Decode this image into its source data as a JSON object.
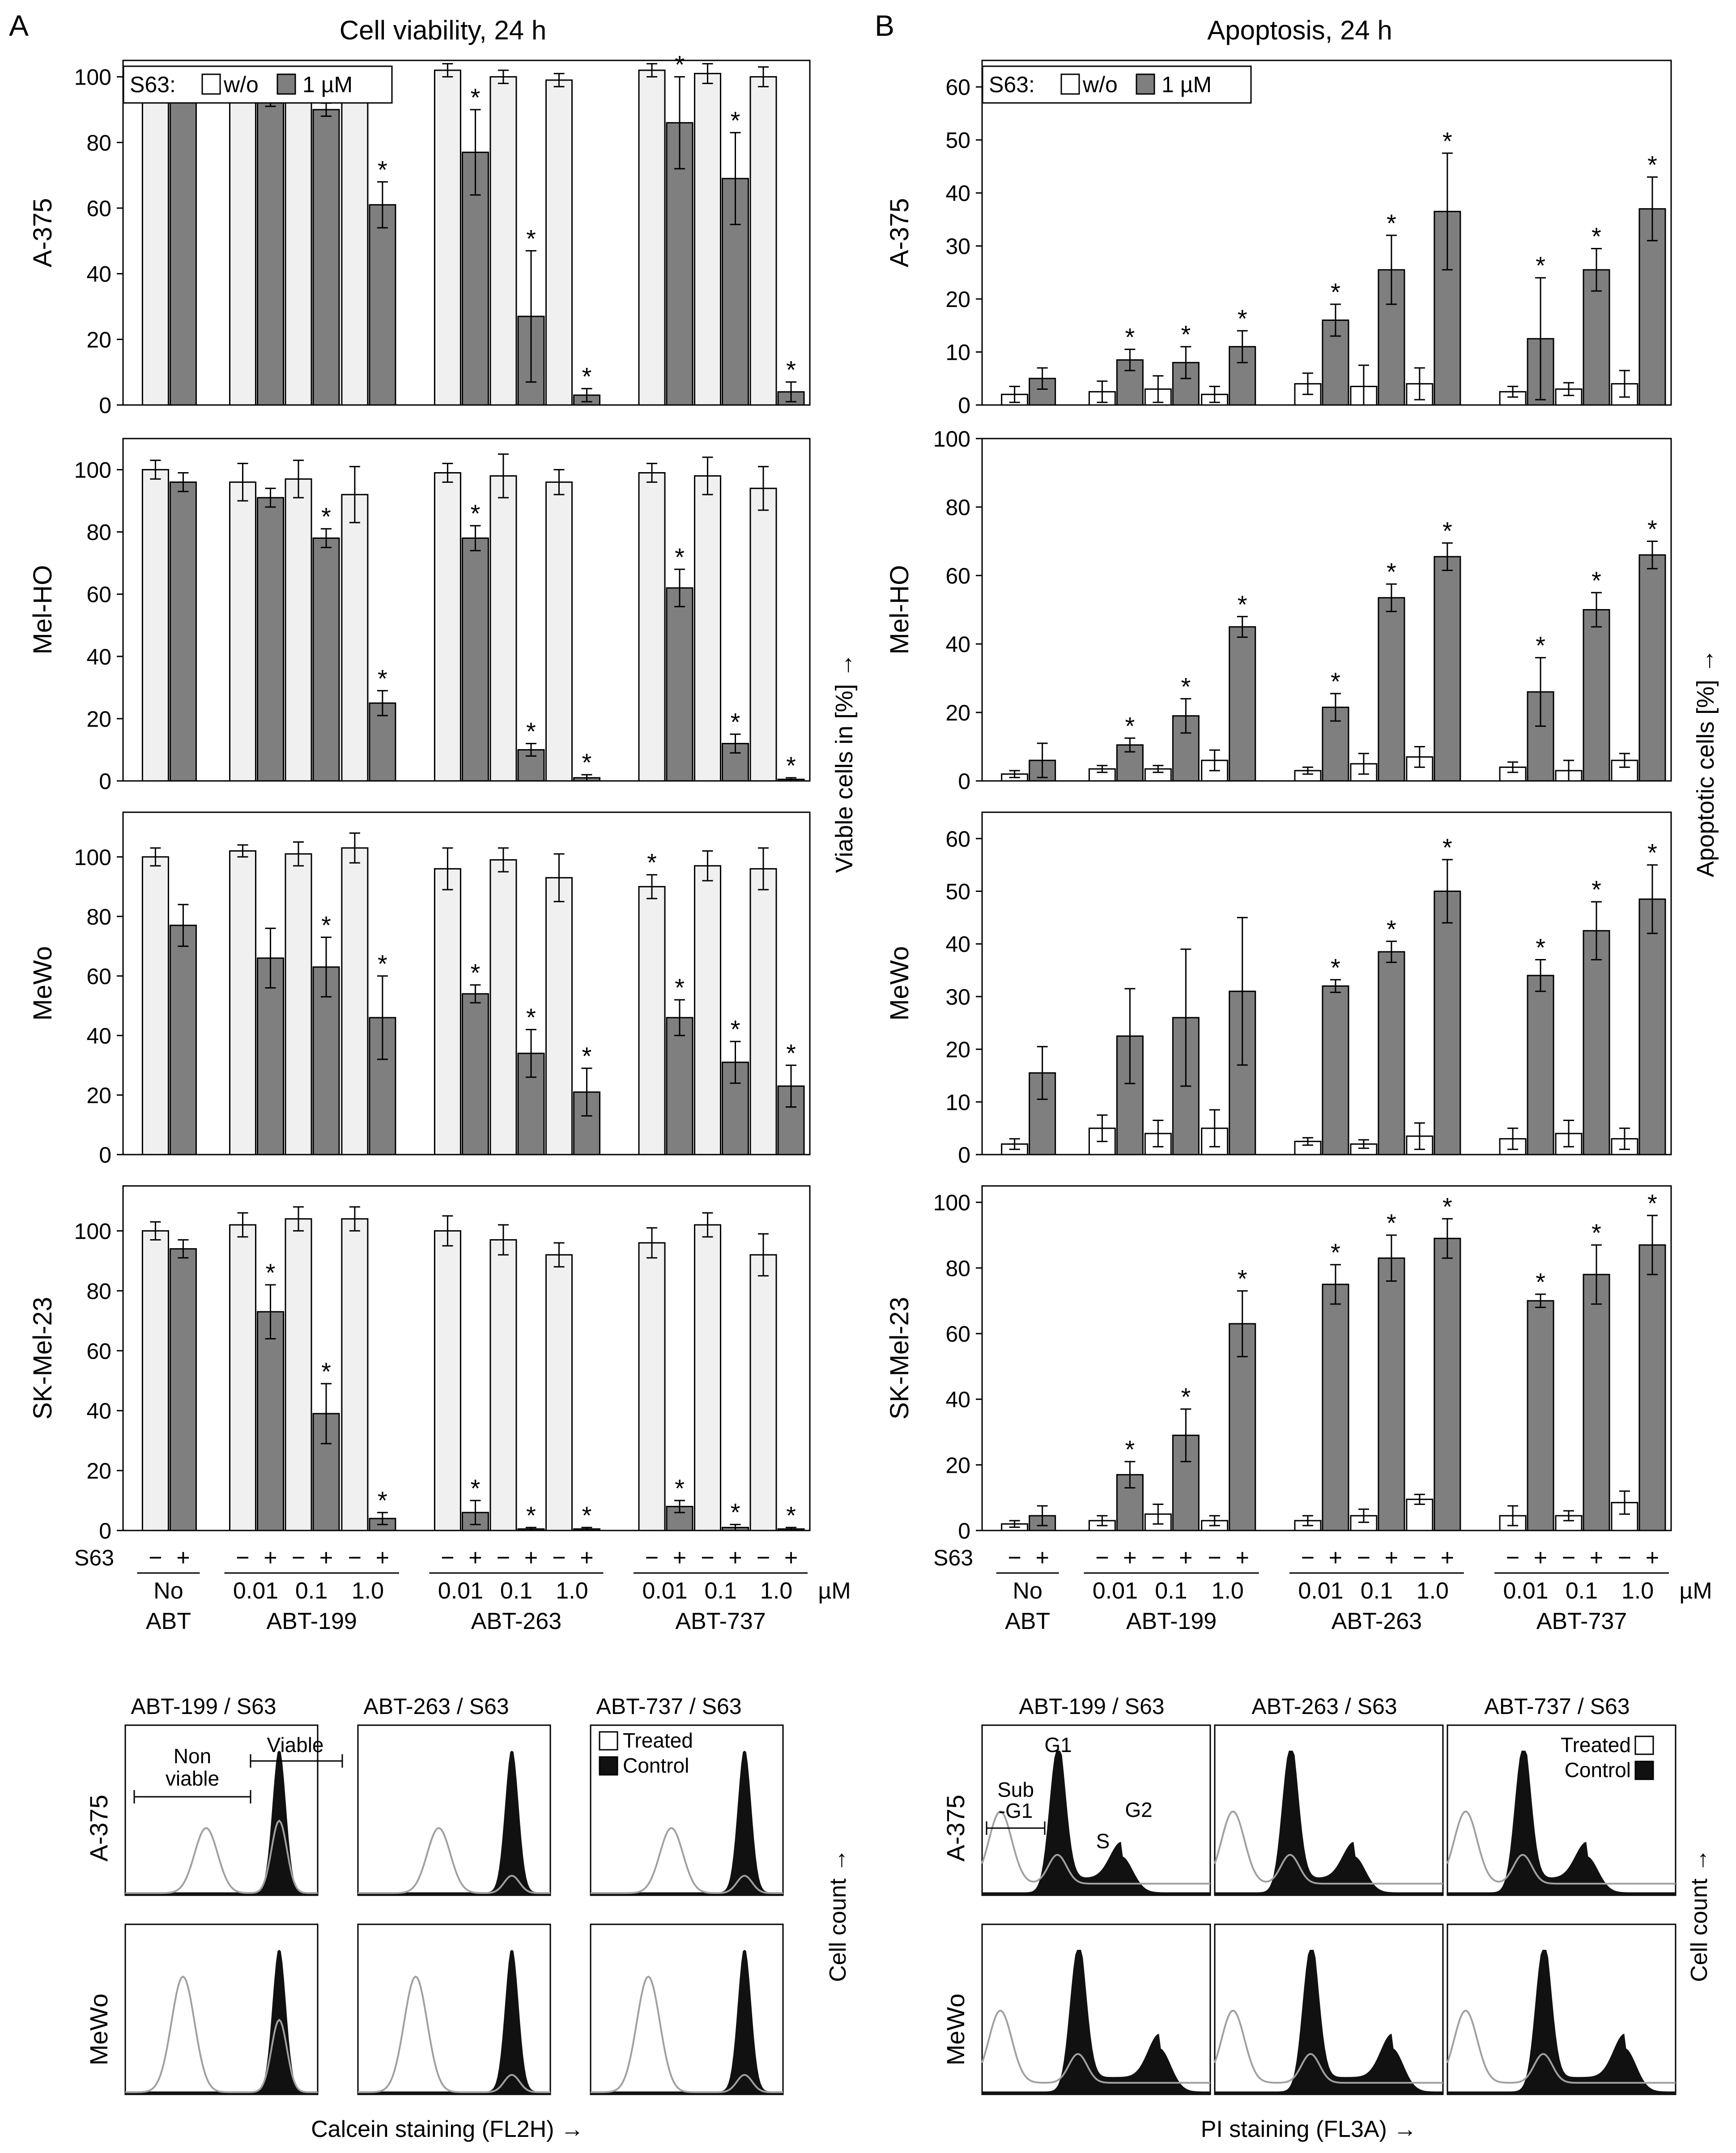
{
  "panel_letters": {
    "a": "A",
    "b": "B"
  },
  "viability": {
    "title": "Cell viability, 24 h",
    "ylabel": "Viable cells in  [%]  →",
    "legend": {
      "prefix": "S63:",
      "wo": "w/o",
      "um": "1 µM"
    }
  },
  "apoptosis": {
    "title": "Apoptosis, 24 h",
    "ylabel": "Apoptotic cells  [%]  →",
    "legend": {
      "prefix": "S63:",
      "wo": "w/o",
      "um": "1 µM"
    }
  },
  "xaxis": {
    "s63_label": "S63",
    "signs": [
      "−",
      "+",
      "−",
      "+",
      "−",
      "+",
      "−",
      "+",
      "−",
      "+",
      "−",
      "+",
      "−",
      "+",
      "−",
      "+",
      "−",
      "+",
      "−",
      "+"
    ],
    "doses": [
      "0.01",
      "0.1",
      "1.0",
      "0.01",
      "0.1",
      "1.0",
      "0.01",
      "0.1",
      "1.0"
    ],
    "unit": "µM",
    "no_abt": [
      "No",
      "ABT"
    ],
    "groups": [
      "ABT-199",
      "ABT-263",
      "ABT-737"
    ]
  },
  "colors": {
    "wo": "#f0f0f0",
    "um": "#7f7f7f",
    "edge": "#000000",
    "filled": "#111111",
    "treated_line": "#a0a0a0"
  },
  "chart_data": [
    {
      "panel": "A",
      "type": "bar",
      "title": "Cell viability, 24 h",
      "ylabel": "Viable cells in [%]",
      "categories": [
        "No ABT",
        "ABT-199 0.01",
        "ABT-199 0.1",
        "ABT-199 1.0",
        "ABT-263 0.01",
        "ABT-263 0.1",
        "ABT-263 1.0",
        "ABT-737 0.01",
        "ABT-737 0.1",
        "ABT-737 1.0"
      ],
      "rows": [
        {
          "cell_line": "A-375",
          "ylim": [
            0,
            105
          ],
          "yticks": [
            0,
            20,
            40,
            60,
            80,
            100
          ],
          "wo": [
            100,
            97,
            98,
            98,
            102,
            100,
            99,
            102,
            101,
            100
          ],
          "wo_err": [
            3,
            3,
            3,
            3,
            2,
            2,
            2,
            2,
            3,
            3
          ],
          "um": [
            98,
            94,
            90,
            61,
            77,
            27,
            3,
            86,
            69,
            4
          ],
          "um_err": [
            2,
            3,
            2,
            7,
            13,
            20,
            2,
            14,
            14,
            3
          ],
          "wo_star": [
            false,
            false,
            false,
            false,
            false,
            false,
            false,
            false,
            false,
            false
          ],
          "um_star": [
            false,
            true,
            true,
            true,
            true,
            true,
            true,
            true,
            true,
            true
          ]
        },
        {
          "cell_line": "Mel-HO",
          "ylim": [
            0,
            110
          ],
          "yticks": [
            0,
            20,
            40,
            60,
            80,
            100
          ],
          "wo": [
            100,
            96,
            97,
            92,
            99,
            98,
            96,
            99,
            98,
            94
          ],
          "wo_err": [
            3,
            6,
            6,
            9,
            3,
            7,
            4,
            3,
            6,
            7
          ],
          "um": [
            96,
            91,
            78,
            25,
            78,
            10,
            1,
            62,
            12,
            0.5
          ],
          "um_err": [
            3,
            3,
            3,
            4,
            4,
            2,
            1,
            6,
            3,
            0.5
          ],
          "wo_star": [
            false,
            false,
            false,
            false,
            false,
            false,
            false,
            false,
            false,
            false
          ],
          "um_star": [
            false,
            false,
            true,
            true,
            true,
            true,
            true,
            true,
            true,
            true
          ]
        },
        {
          "cell_line": "MeWo",
          "ylim": [
            0,
            115
          ],
          "yticks": [
            0,
            20,
            40,
            60,
            80,
            100
          ],
          "wo": [
            100,
            102,
            101,
            103,
            96,
            99,
            93,
            90,
            97,
            96
          ],
          "wo_err": [
            3,
            2,
            4,
            5,
            7,
            4,
            8,
            4,
            5,
            7
          ],
          "um": [
            77,
            66,
            63,
            46,
            54,
            34,
            21,
            46,
            31,
            23
          ],
          "um_err": [
            7,
            10,
            10,
            14,
            3,
            8,
            8,
            6,
            7,
            7
          ],
          "wo_star": [
            false,
            false,
            false,
            false,
            false,
            false,
            false,
            true,
            false,
            false
          ],
          "um_star": [
            false,
            false,
            true,
            true,
            true,
            true,
            true,
            true,
            true,
            true
          ]
        },
        {
          "cell_line": "SK-Mel-23",
          "ylim": [
            0,
            115
          ],
          "yticks": [
            0,
            20,
            40,
            60,
            80,
            100
          ],
          "wo": [
            100,
            102,
            104,
            104,
            100,
            97,
            92,
            96,
            102,
            92
          ],
          "wo_err": [
            3,
            4,
            4,
            4,
            5,
            5,
            4,
            5,
            4,
            7
          ],
          "um": [
            94,
            73,
            39,
            4,
            6,
            0.5,
            0.5,
            8,
            1,
            0.5
          ],
          "um_err": [
            3,
            9,
            10,
            2,
            4,
            0.5,
            0.5,
            2,
            1,
            0.5
          ],
          "wo_star": [
            false,
            false,
            false,
            false,
            false,
            false,
            false,
            false,
            false,
            false
          ],
          "um_star": [
            false,
            true,
            true,
            true,
            true,
            true,
            true,
            true,
            true,
            true
          ]
        }
      ]
    },
    {
      "panel": "B",
      "type": "bar",
      "title": "Apoptosis, 24 h",
      "ylabel": "Apoptotic cells [%]",
      "categories": [
        "No ABT",
        "ABT-199 0.01",
        "ABT-199 0.1",
        "ABT-199 1.0",
        "ABT-263 0.01",
        "ABT-263 0.1",
        "ABT-263 1.0",
        "ABT-737 0.01",
        "ABT-737 0.1",
        "ABT-737 1.0"
      ],
      "rows": [
        {
          "cell_line": "A-375",
          "ylim": [
            0,
            65
          ],
          "yticks": [
            0,
            10,
            20,
            30,
            40,
            50,
            60
          ],
          "wo": [
            2,
            2.5,
            3,
            2,
            4,
            3.5,
            4,
            2.5,
            3,
            4
          ],
          "wo_err": [
            1.5,
            2,
            2.5,
            1.5,
            2,
            4,
            3,
            1,
            1.2,
            2.5
          ],
          "um": [
            5,
            8.5,
            8,
            11,
            16,
            25.5,
            36.5,
            12.5,
            25.5,
            37
          ],
          "um_err": [
            2,
            2,
            3,
            3,
            3,
            6.5,
            11,
            11.5,
            4,
            6
          ],
          "wo_star": [
            false,
            false,
            false,
            false,
            false,
            false,
            false,
            false,
            false,
            false
          ],
          "um_star": [
            false,
            true,
            true,
            true,
            true,
            true,
            true,
            true,
            true,
            true
          ]
        },
        {
          "cell_line": "Mel-HO",
          "ylim": [
            0,
            100
          ],
          "yticks": [
            0,
            20,
            40,
            60,
            80,
            100
          ],
          "wo": [
            2,
            3.5,
            3.5,
            6,
            3,
            5,
            7,
            4,
            3,
            6
          ],
          "wo_err": [
            1,
            1,
            1,
            3,
            1,
            3,
            3,
            1.5,
            3,
            2
          ],
          "um": [
            6,
            10.5,
            19,
            45,
            21.5,
            53.5,
            65.5,
            26,
            50,
            66
          ],
          "um_err": [
            5,
            2,
            5,
            3,
            4,
            4,
            4,
            10,
            5,
            4
          ],
          "wo_star": [
            false,
            false,
            false,
            false,
            false,
            false,
            false,
            false,
            false,
            false
          ],
          "um_star": [
            false,
            true,
            true,
            true,
            true,
            true,
            true,
            true,
            true,
            true
          ]
        },
        {
          "cell_line": "MeWo",
          "ylim": [
            0,
            65
          ],
          "yticks": [
            0,
            10,
            20,
            30,
            40,
            50,
            60
          ],
          "wo": [
            2,
            5,
            4,
            5,
            2.5,
            2,
            3.5,
            3,
            4,
            3
          ],
          "wo_err": [
            1,
            2.5,
            2.5,
            3.5,
            0.7,
            0.8,
            2.5,
            2,
            2.5,
            2
          ],
          "um": [
            15.5,
            22.5,
            26,
            31,
            32,
            38.5,
            50,
            34,
            42.5,
            48.5
          ],
          "um_err": [
            5,
            9,
            13,
            14,
            1.2,
            2,
            6,
            3,
            5.5,
            6.5
          ],
          "wo_star": [
            false,
            false,
            false,
            false,
            false,
            false,
            false,
            false,
            false,
            false
          ],
          "um_star": [
            false,
            false,
            false,
            false,
            true,
            true,
            true,
            true,
            true,
            true
          ]
        },
        {
          "cell_line": "SK-Mel-23",
          "ylim": [
            0,
            105
          ],
          "yticks": [
            0,
            20,
            40,
            60,
            80,
            100
          ],
          "wo": [
            2,
            3,
            5,
            3,
            3,
            4.5,
            9.5,
            4.5,
            4.5,
            8.5
          ],
          "wo_err": [
            1,
            1.5,
            3,
            1.5,
            1.5,
            2,
            1.5,
            3,
            1.5,
            3.5
          ],
          "um": [
            4.5,
            17,
            29,
            63,
            75,
            83,
            89,
            70,
            78,
            87
          ],
          "um_err": [
            3,
            4,
            8,
            10,
            6,
            7,
            6,
            2,
            9,
            9
          ],
          "wo_star": [
            false,
            false,
            false,
            false,
            false,
            false,
            false,
            false,
            false,
            false
          ],
          "um_star": [
            false,
            true,
            true,
            true,
            true,
            true,
            true,
            true,
            true,
            true
          ]
        }
      ]
    }
  ],
  "histograms": {
    "left": {
      "titles": [
        "ABT-199 / S63",
        "ABT-263 / S63",
        "ABT-737 / S63"
      ],
      "rows": [
        "A-375",
        "MeWo"
      ],
      "legend": {
        "treated": "Treated",
        "control": "Control"
      },
      "annot": {
        "nonviable": [
          "Non",
          "viable"
        ],
        "viable": "Viable"
      },
      "ylabel": "Cell count  →",
      "xlabel": "Calcein staining (FL2H)  →"
    },
    "right": {
      "titles": [
        "ABT-199 / S63",
        "ABT-263 / S63",
        "ABT-737 / S63"
      ],
      "rows": [
        "A-375",
        "MeWo"
      ],
      "legend": {
        "treated": "Treated",
        "control": "Control"
      },
      "annot": {
        "g1": "G1",
        "subg1": [
          "Sub",
          "-G1"
        ],
        "s": "S",
        "g2": "G2"
      },
      "ylabel": "Cell count  →",
      "xlabel": "PI staining (FL3A)  →"
    }
  }
}
